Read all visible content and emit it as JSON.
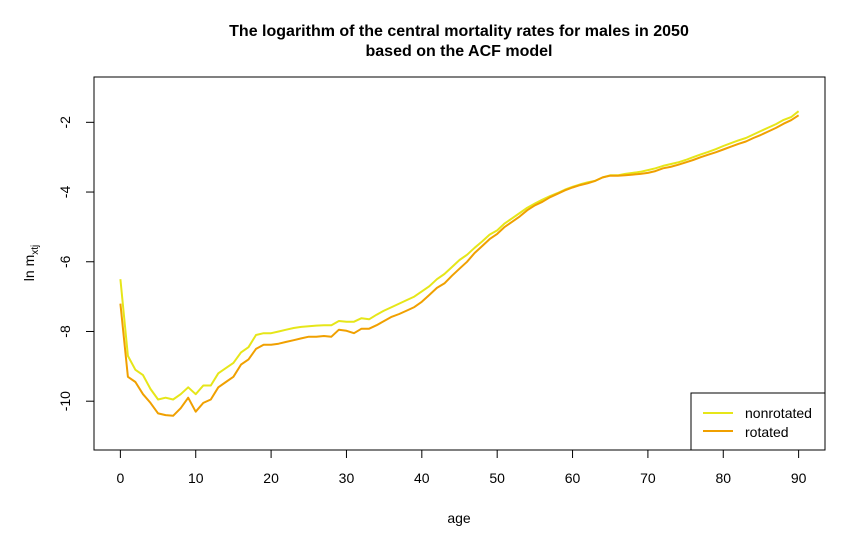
{
  "chart_data": {
    "type": "line",
    "title": "The logarithm of the central mortality rates for males in 2050",
    "subtitle": "based on the ACF model",
    "xlabel": "age",
    "ylabel": "ln m",
    "ylabel_sub": "xtj",
    "xlim": [
      -3.5,
      93.5
    ],
    "ylim": [
      -11.4,
      -0.7
    ],
    "xticks": [
      0,
      10,
      20,
      30,
      40,
      50,
      60,
      70,
      80,
      90
    ],
    "yticks": [
      -10,
      -8,
      -6,
      -4,
      -2
    ],
    "grid": false,
    "legend_position": "bottom-right",
    "series": [
      {
        "name": "nonrotated",
        "color": "#E6E619",
        "x": [
          0,
          1,
          2,
          3,
          4,
          5,
          6,
          7,
          8,
          9,
          10,
          11,
          12,
          13,
          14,
          15,
          16,
          17,
          18,
          19,
          20,
          21,
          22,
          23,
          24,
          25,
          26,
          27,
          28,
          29,
          30,
          31,
          32,
          33,
          34,
          35,
          36,
          37,
          38,
          39,
          40,
          41,
          42,
          43,
          44,
          45,
          46,
          47,
          48,
          49,
          50,
          51,
          52,
          53,
          54,
          55,
          56,
          57,
          58,
          59,
          60,
          61,
          62,
          63,
          64,
          65,
          66,
          67,
          68,
          69,
          70,
          71,
          72,
          73,
          74,
          75,
          76,
          77,
          78,
          79,
          80,
          81,
          82,
          83,
          84,
          85,
          86,
          87,
          88,
          89,
          90
        ],
        "y": [
          -6.5,
          -8.7,
          -9.1,
          -9.25,
          -9.65,
          -9.95,
          -9.9,
          -9.95,
          -9.8,
          -9.6,
          -9.8,
          -9.55,
          -9.55,
          -9.2,
          -9.05,
          -8.9,
          -8.6,
          -8.45,
          -8.1,
          -8.05,
          -8.05,
          -8.0,
          -7.95,
          -7.9,
          -7.87,
          -7.85,
          -7.83,
          -7.82,
          -7.82,
          -7.7,
          -7.72,
          -7.72,
          -7.62,
          -7.65,
          -7.52,
          -7.4,
          -7.3,
          -7.2,
          -7.1,
          -7.0,
          -6.85,
          -6.7,
          -6.5,
          -6.35,
          -6.15,
          -5.95,
          -5.8,
          -5.6,
          -5.42,
          -5.22,
          -5.1,
          -4.9,
          -4.75,
          -4.6,
          -4.45,
          -4.33,
          -4.22,
          -4.12,
          -4.03,
          -3.93,
          -3.85,
          -3.78,
          -3.72,
          -3.68,
          -3.58,
          -3.52,
          -3.52,
          -3.48,
          -3.45,
          -3.42,
          -3.37,
          -3.32,
          -3.25,
          -3.2,
          -3.15,
          -3.08,
          -3.0,
          -2.92,
          -2.85,
          -2.77,
          -2.68,
          -2.6,
          -2.52,
          -2.45,
          -2.35,
          -2.25,
          -2.15,
          -2.05,
          -1.93,
          -1.85,
          -1.68
        ]
      },
      {
        "name": "rotated",
        "color": "#F0A000",
        "x": [
          0,
          1,
          2,
          3,
          4,
          5,
          6,
          7,
          8,
          9,
          10,
          11,
          12,
          13,
          14,
          15,
          16,
          17,
          18,
          19,
          20,
          21,
          22,
          23,
          24,
          25,
          26,
          27,
          28,
          29,
          30,
          31,
          32,
          33,
          34,
          35,
          36,
          37,
          38,
          39,
          40,
          41,
          42,
          43,
          44,
          45,
          46,
          47,
          48,
          49,
          50,
          51,
          52,
          53,
          54,
          55,
          56,
          57,
          58,
          59,
          60,
          61,
          62,
          63,
          64,
          65,
          66,
          67,
          68,
          69,
          70,
          71,
          72,
          73,
          74,
          75,
          76,
          77,
          78,
          79,
          80,
          81,
          82,
          83,
          84,
          85,
          86,
          87,
          88,
          89,
          90
        ],
        "y": [
          -7.2,
          -9.3,
          -9.45,
          -9.8,
          -10.05,
          -10.35,
          -10.4,
          -10.42,
          -10.2,
          -9.9,
          -10.3,
          -10.05,
          -9.95,
          -9.6,
          -9.45,
          -9.3,
          -8.95,
          -8.8,
          -8.5,
          -8.38,
          -8.38,
          -8.35,
          -8.3,
          -8.25,
          -8.2,
          -8.15,
          -8.15,
          -8.13,
          -8.15,
          -7.95,
          -7.98,
          -8.05,
          -7.92,
          -7.92,
          -7.82,
          -7.7,
          -7.58,
          -7.5,
          -7.4,
          -7.3,
          -7.15,
          -6.95,
          -6.75,
          -6.62,
          -6.4,
          -6.2,
          -6.0,
          -5.75,
          -5.55,
          -5.35,
          -5.2,
          -5.0,
          -4.85,
          -4.7,
          -4.52,
          -4.38,
          -4.28,
          -4.15,
          -4.05,
          -3.95,
          -3.87,
          -3.8,
          -3.75,
          -3.68,
          -3.58,
          -3.53,
          -3.53,
          -3.52,
          -3.5,
          -3.48,
          -3.45,
          -3.4,
          -3.32,
          -3.28,
          -3.22,
          -3.15,
          -3.08,
          -3.0,
          -2.93,
          -2.86,
          -2.78,
          -2.7,
          -2.62,
          -2.55,
          -2.45,
          -2.36,
          -2.26,
          -2.16,
          -2.04,
          -1.94,
          -1.8
        ]
      }
    ]
  }
}
